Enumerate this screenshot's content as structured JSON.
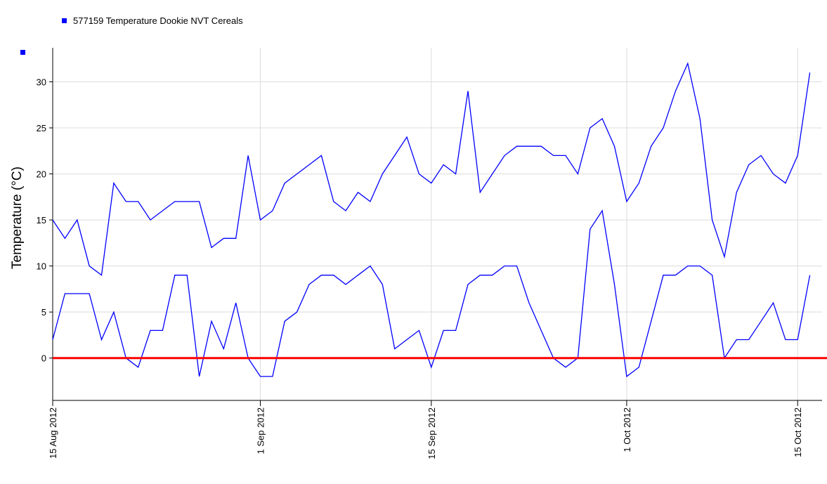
{
  "chart_data": {
    "type": "line",
    "ylabel": "Temperature (°C)",
    "x": [
      "2012-08-15",
      "2012-08-16",
      "2012-08-17",
      "2012-08-18",
      "2012-08-19",
      "2012-08-20",
      "2012-08-21",
      "2012-08-22",
      "2012-08-23",
      "2012-08-24",
      "2012-08-25",
      "2012-08-26",
      "2012-08-27",
      "2012-08-28",
      "2012-08-29",
      "2012-08-30",
      "2012-08-31",
      "2012-09-01",
      "2012-09-02",
      "2012-09-03",
      "2012-09-04",
      "2012-09-05",
      "2012-09-06",
      "2012-09-07",
      "2012-09-08",
      "2012-09-09",
      "2012-09-10",
      "2012-09-11",
      "2012-09-12",
      "2012-09-13",
      "2012-09-14",
      "2012-09-15",
      "2012-09-16",
      "2012-09-17",
      "2012-09-18",
      "2012-09-19",
      "2012-09-20",
      "2012-09-21",
      "2012-09-22",
      "2012-09-23",
      "2012-09-24",
      "2012-09-25",
      "2012-09-26",
      "2012-09-27",
      "2012-09-28",
      "2012-09-29",
      "2012-09-30",
      "2012-10-01",
      "2012-10-02",
      "2012-10-03",
      "2012-10-04",
      "2012-10-05",
      "2012-10-06",
      "2012-10-07",
      "2012-10-08",
      "2012-10-09",
      "2012-10-10",
      "2012-10-11",
      "2012-10-12",
      "2012-10-13",
      "2012-10-14",
      "2012-10-15",
      "2012-10-16"
    ],
    "series": [
      {
        "name": "577159  Temperature Dookie NVT Cereals",
        "color": "#0000ff",
        "values": [
          15,
          13,
          15,
          10,
          9,
          19,
          17,
          17,
          15,
          16,
          17,
          17,
          17,
          12,
          13,
          13,
          22,
          15,
          16,
          19,
          20,
          21,
          22,
          17,
          16,
          18,
          17,
          20,
          22,
          24,
          20,
          19,
          21,
          20,
          29,
          18,
          20,
          22,
          23,
          23,
          23,
          22,
          22,
          20,
          25,
          26,
          23,
          17,
          19,
          23,
          25,
          29,
          32,
          26,
          15,
          11,
          18,
          21,
          22,
          20,
          19,
          22,
          31
        ]
      },
      {
        "color": "#0000ff",
        "values": [
          2,
          7,
          7,
          7,
          2,
          5,
          0,
          -1,
          3,
          3,
          9,
          9,
          -2,
          4,
          1,
          6,
          0,
          -2,
          -2,
          4,
          5,
          8,
          9,
          9,
          8,
          9,
          10,
          8,
          1,
          2,
          3,
          -1,
          3,
          3,
          8,
          9,
          9,
          10,
          10,
          6,
          3,
          0,
          -1,
          0,
          14,
          16,
          8,
          -2,
          -1,
          4,
          9,
          9,
          10,
          10,
          9,
          0,
          2,
          2,
          4,
          6,
          2,
          2,
          9
        ]
      }
    ],
    "xlim": [
      "2012-08-15",
      "2012-10-17"
    ],
    "xticks": [
      {
        "value": "2012-08-15",
        "label": "15 Aug 2012"
      },
      {
        "value": "2012-09-01",
        "label": "1 Sep 2012"
      },
      {
        "value": "2012-09-15",
        "label": "15 Sep 2012"
      },
      {
        "value": "2012-10-01",
        "label": "1 Oct 2012"
      },
      {
        "value": "2012-10-15",
        "label": "15 Oct 2012"
      }
    ],
    "ylim": [
      -4.6,
      33.7
    ],
    "yticks": [
      0,
      5,
      10,
      15,
      20,
      25,
      30
    ],
    "grid": true,
    "reference_line": {
      "value": 0,
      "color": "#ff0000"
    }
  }
}
